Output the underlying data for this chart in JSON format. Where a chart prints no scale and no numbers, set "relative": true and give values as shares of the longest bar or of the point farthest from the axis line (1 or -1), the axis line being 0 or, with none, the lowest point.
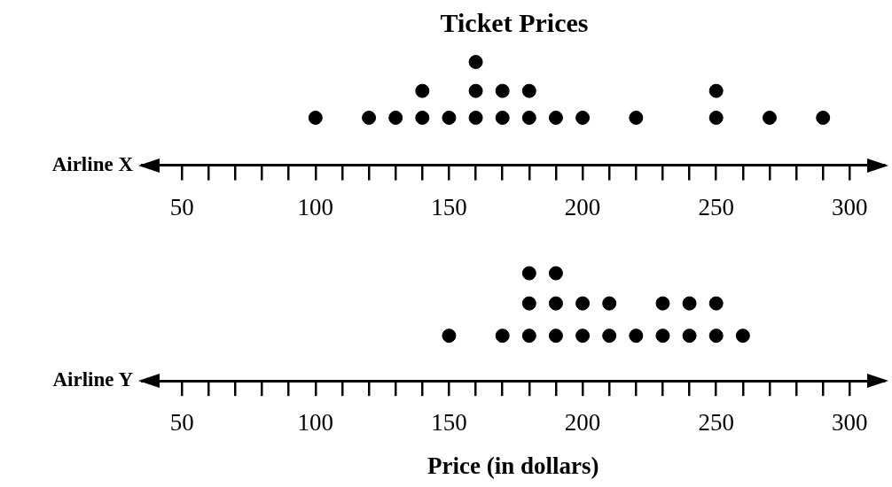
{
  "chart_data": [
    {
      "type": "scatter",
      "title": "Ticket Prices",
      "ylabel": "Airline X",
      "color": "#000000",
      "marker": "circle",
      "grid": false,
      "legend": false,
      "tick_labels": "x",
      "x": [
        100,
        120,
        130,
        140,
        140,
        150,
        160,
        160,
        160,
        170,
        170,
        180,
        180,
        190,
        200,
        220,
        250,
        250,
        270,
        290
      ],
      "values": [
        0.46,
        0.46,
        0.46,
        0.46,
        0.72,
        0.46,
        0.46,
        0.72,
        1,
        0.46,
        0.72,
        0.46,
        0.72,
        0.46,
        0.46,
        0.46,
        0.46,
        0.72,
        0.46,
        0.46
      ],
      "relative": true,
      "xlim": [
        35,
        313
      ],
      "xticks": [
        50,
        {
          "value": 60,
          "label": null
        },
        {
          "value": 70,
          "label": null
        },
        {
          "value": 80,
          "label": null
        },
        {
          "value": 90,
          "label": null
        },
        100,
        {
          "value": 110,
          "label": null
        },
        {
          "value": 120,
          "label": null
        },
        {
          "value": 130,
          "label": null
        },
        {
          "value": 140,
          "label": null
        },
        150,
        {
          "value": 160,
          "label": null
        },
        {
          "value": 170,
          "label": null
        },
        {
          "value": 180,
          "label": null
        },
        {
          "value": 190,
          "label": null
        },
        200,
        {
          "value": 210,
          "label": null
        },
        {
          "value": 220,
          "label": null
        },
        {
          "value": 230,
          "label": null
        },
        {
          "value": 240,
          "label": null
        },
        250,
        {
          "value": 260,
          "label": null
        },
        {
          "value": 270,
          "label": null
        },
        {
          "value": 280,
          "label": null
        },
        {
          "value": 290,
          "label": null
        },
        300
      ]
    },
    {
      "type": "scatter",
      "ylabel": "Airline Y",
      "xlabel": "Price (in dollars)",
      "color": "#000000",
      "marker": "circle",
      "grid": false,
      "legend": false,
      "tick_labels": "x",
      "x": [
        150,
        170,
        180,
        180,
        180,
        190,
        190,
        190,
        200,
        200,
        210,
        210,
        220,
        230,
        230,
        240,
        240,
        250,
        250,
        260
      ],
      "values": [
        0.42,
        0.42,
        0.42,
        0.72,
        1,
        0.42,
        0.72,
        1,
        0.42,
        0.72,
        0.42,
        0.72,
        0.42,
        0.42,
        0.72,
        0.42,
        0.72,
        0.42,
        0.72,
        0.42
      ],
      "relative": true,
      "xlim": [
        35,
        313
      ],
      "xticks": [
        50,
        {
          "value": 60,
          "label": null
        },
        {
          "value": 70,
          "label": null
        },
        {
          "value": 80,
          "label": null
        },
        {
          "value": 90,
          "label": null
        },
        100,
        {
          "value": 110,
          "label": null
        },
        {
          "value": 120,
          "label": null
        },
        {
          "value": 130,
          "label": null
        },
        {
          "value": 140,
          "label": null
        },
        150,
        {
          "value": 160,
          "label": null
        },
        {
          "value": 170,
          "label": null
        },
        {
          "value": 180,
          "label": null
        },
        {
          "value": 190,
          "label": null
        },
        200,
        {
          "value": 210,
          "label": null
        },
        {
          "value": 220,
          "label": null
        },
        {
          "value": 230,
          "label": null
        },
        {
          "value": 240,
          "label": null
        },
        250,
        {
          "value": 260,
          "label": null
        },
        {
          "value": 270,
          "label": null
        },
        {
          "value": 280,
          "label": null
        },
        {
          "value": 290,
          "label": null
        },
        300
      ]
    }
  ]
}
